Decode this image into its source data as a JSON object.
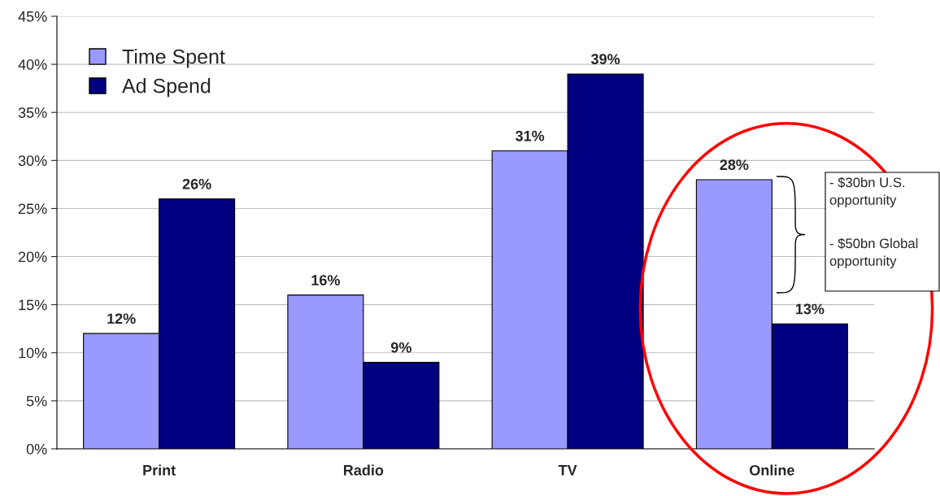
{
  "chart_data": {
    "type": "bar",
    "categories": [
      "Print",
      "Radio",
      "TV",
      "Online"
    ],
    "series": [
      {
        "name": "Time Spent",
        "color": "#9999ff",
        "values": [
          12,
          16,
          31,
          28
        ],
        "value_labels": [
          "12%",
          "16%",
          "31%",
          "28%"
        ]
      },
      {
        "name": "Ad Spend",
        "color": "#000080",
        "values": [
          26,
          9,
          39,
          13
        ],
        "value_labels": [
          "26%",
          "9%",
          "39%",
          "13%"
        ]
      }
    ],
    "ylim": [
      0,
      45
    ],
    "yticks": [
      {
        "value": 0,
        "label": "0%"
      },
      {
        "value": 5,
        "label": "5%"
      },
      {
        "value": 10,
        "label": "10%"
      },
      {
        "value": 15,
        "label": "15%"
      },
      {
        "value": 20,
        "label": "20%"
      },
      {
        "value": 25,
        "label": "25%"
      },
      {
        "value": 30,
        "label": "30%"
      },
      {
        "value": 35,
        "label": "35%"
      },
      {
        "value": 40,
        "label": "40%"
      },
      {
        "value": 45,
        "label": "45%"
      }
    ],
    "grid": "y",
    "legend": "top left",
    "annotations": [
      "- $30bn U.S.\nopportunity",
      "- $50bn Global\nopportunity"
    ]
  }
}
